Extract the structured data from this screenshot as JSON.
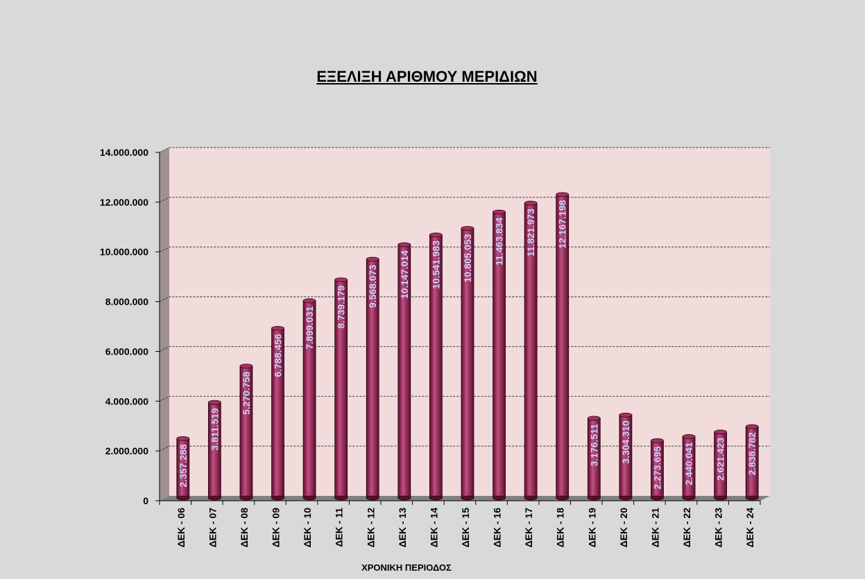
{
  "chart_data": {
    "type": "bar",
    "title": "ΕΞΕΛΙΞΗ ΑΡΙΘΜΟΥ ΜΕΡΙΔΙΩΝ",
    "xlabel": "ΧΡΟΝΙΚΗ ΠΕΡΙΟΔΟΣ",
    "ylabel": "",
    "ylim": [
      0,
      14000000
    ],
    "y_ticks": [
      0,
      2000000,
      4000000,
      6000000,
      8000000,
      10000000,
      12000000,
      14000000
    ],
    "y_tick_labels": [
      "0",
      "2.000.000",
      "4.000.000",
      "6.000.000",
      "8.000.000",
      "10.000.000",
      "12.000.000",
      "14.000.000"
    ],
    "grid": true,
    "categories": [
      "ΔΕΚ - 06",
      "ΔΕΚ - 07",
      "ΔΕΚ - 08",
      "ΔΕΚ - 09",
      "ΔΕΚ - 10",
      "ΔΕΚ - 11",
      "ΔΕΚ - 12",
      "ΔΕΚ - 13",
      "ΔΕΚ - 14",
      "ΔΕΚ - 15",
      "ΔΕΚ - 16",
      "ΔΕΚ - 17",
      "ΔΕΚ - 18",
      "ΔΕΚ - 19",
      "ΔΕΚ - 20",
      "ΔΕΚ - 21",
      "ΔΕΚ - 22",
      "ΔΕΚ - 23",
      "ΔΕΚ - 24"
    ],
    "values": [
      2357288,
      3811519,
      5270758,
      6788456,
      7899031,
      8739179,
      9568073,
      10147014,
      10541983,
      10805053,
      11463834,
      11821973,
      12167198,
      3176511,
      3304310,
      2273695,
      2440041,
      2621423,
      2838782
    ],
    "value_labels": [
      "2.357.288",
      "3.811.519",
      "5.270.758",
      "6.788.456",
      "7.899.031",
      "8.739.179",
      "9.568.073",
      "10.147.014",
      "10.541.983",
      "10.805.053",
      "11.463.834",
      "11.821.973",
      "12.167.198",
      "3.176.511",
      "3.304.310",
      "2.273.695",
      "2.440.041",
      "2.621.423",
      "2.838.782"
    ],
    "colors": {
      "bar": "#8b1e4e",
      "bar_highlight": "#c0507e",
      "bar_dark": "#5c0c30",
      "bar_cap": "#a8315f",
      "plot_background": "#f2dcdb",
      "side_wall": "#a09090",
      "floor": "#808080",
      "value_label": "#c9d3ff"
    }
  }
}
